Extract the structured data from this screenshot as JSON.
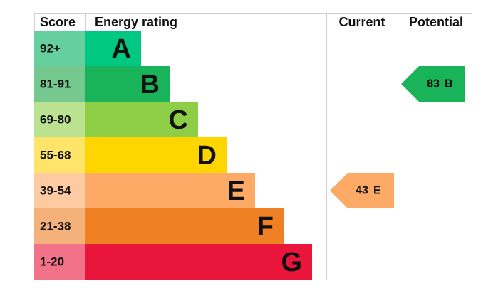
{
  "header": {
    "score": "Score",
    "rating": "Energy rating",
    "current": "Current",
    "potential": "Potential"
  },
  "bands": [
    {
      "score": "92+",
      "letter": "A",
      "color": "#00c781",
      "score_color": "#66cf9f"
    },
    {
      "score": "81-91",
      "letter": "B",
      "color": "#19b459",
      "score_color": "#75c98f"
    },
    {
      "score": "69-80",
      "letter": "C",
      "color": "#8dce46",
      "score_color": "#bbe291"
    },
    {
      "score": "55-68",
      "letter": "D",
      "color": "#ffd500",
      "score_color": "#ffe46a"
    },
    {
      "score": "39-54",
      "letter": "E",
      "color": "#fcaa65",
      "score_color": "#fdcaa2"
    },
    {
      "score": "21-38",
      "letter": "F",
      "color": "#ef8023",
      "score_color": "#f5b17a"
    },
    {
      "score": "1-20",
      "letter": "G",
      "color": "#e9153b",
      "score_color": "#f27389"
    }
  ],
  "current": {
    "value": 43,
    "letter": "E"
  },
  "potential": {
    "value": 83,
    "letter": "B"
  }
}
